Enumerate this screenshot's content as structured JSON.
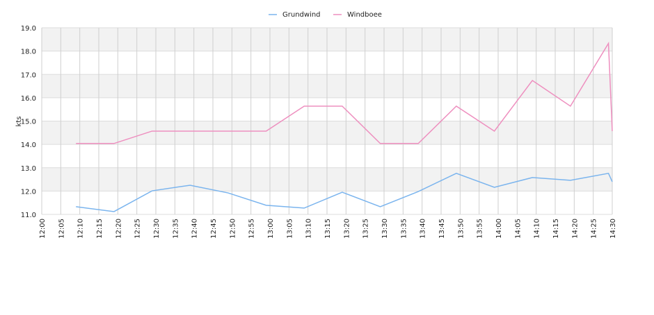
{
  "chart_data": {
    "type": "line",
    "y_label": "kts",
    "x": [
      "12:09",
      "12:19",
      "12:29",
      "12:39",
      "12:49",
      "12:59",
      "13:09",
      "13:19",
      "13:29",
      "13:39",
      "13:49",
      "13:59",
      "14:09",
      "14:19",
      "14:29",
      "14:30"
    ],
    "series": [
      {
        "name": "Grundwind",
        "color": "#7ab4ee",
        "values": [
          11.33,
          11.12,
          12.01,
          12.25,
          11.92,
          11.39,
          11.27,
          11.95,
          11.33,
          11.98,
          12.76,
          12.16,
          12.58,
          12.46,
          12.76,
          12.4
        ]
      },
      {
        "name": "Windboee",
        "color": "#ee8fbf",
        "values": [
          14.04,
          14.04,
          14.57,
          14.57,
          14.57,
          14.57,
          15.64,
          15.64,
          14.04,
          14.04,
          15.64,
          14.57,
          16.74,
          15.64,
          18.33,
          14.57
        ]
      }
    ],
    "xlim": [
      "12:00",
      "14:30"
    ],
    "xticks": [
      "12:00",
      "12:05",
      "12:10",
      "12:15",
      "12:20",
      "12:25",
      "12:30",
      "12:35",
      "12:40",
      "12:45",
      "12:50",
      "12:55",
      "13:00",
      "13:05",
      "13:10",
      "13:15",
      "13:20",
      "13:25",
      "13:30",
      "13:35",
      "13:40",
      "13:45",
      "13:50",
      "13:55",
      "14:00",
      "14:05",
      "14:10",
      "14:15",
      "14:20",
      "14:25",
      "14:30"
    ],
    "ylim": [
      11,
      19
    ],
    "yticks": [
      {
        "value": 11,
        "label": "11.0"
      },
      {
        "value": 12,
        "label": "12.0"
      },
      {
        "value": 13,
        "label": "13.0"
      },
      {
        "value": 14,
        "label": "14.0"
      },
      {
        "value": 15,
        "label": "15.0"
      },
      {
        "value": 16,
        "label": "16.0"
      },
      {
        "value": 17,
        "label": "17.0"
      },
      {
        "value": 18,
        "label": "18.0"
      },
      {
        "value": 19,
        "label": "19.0"
      }
    ],
    "grid": true,
    "legend": "top"
  }
}
